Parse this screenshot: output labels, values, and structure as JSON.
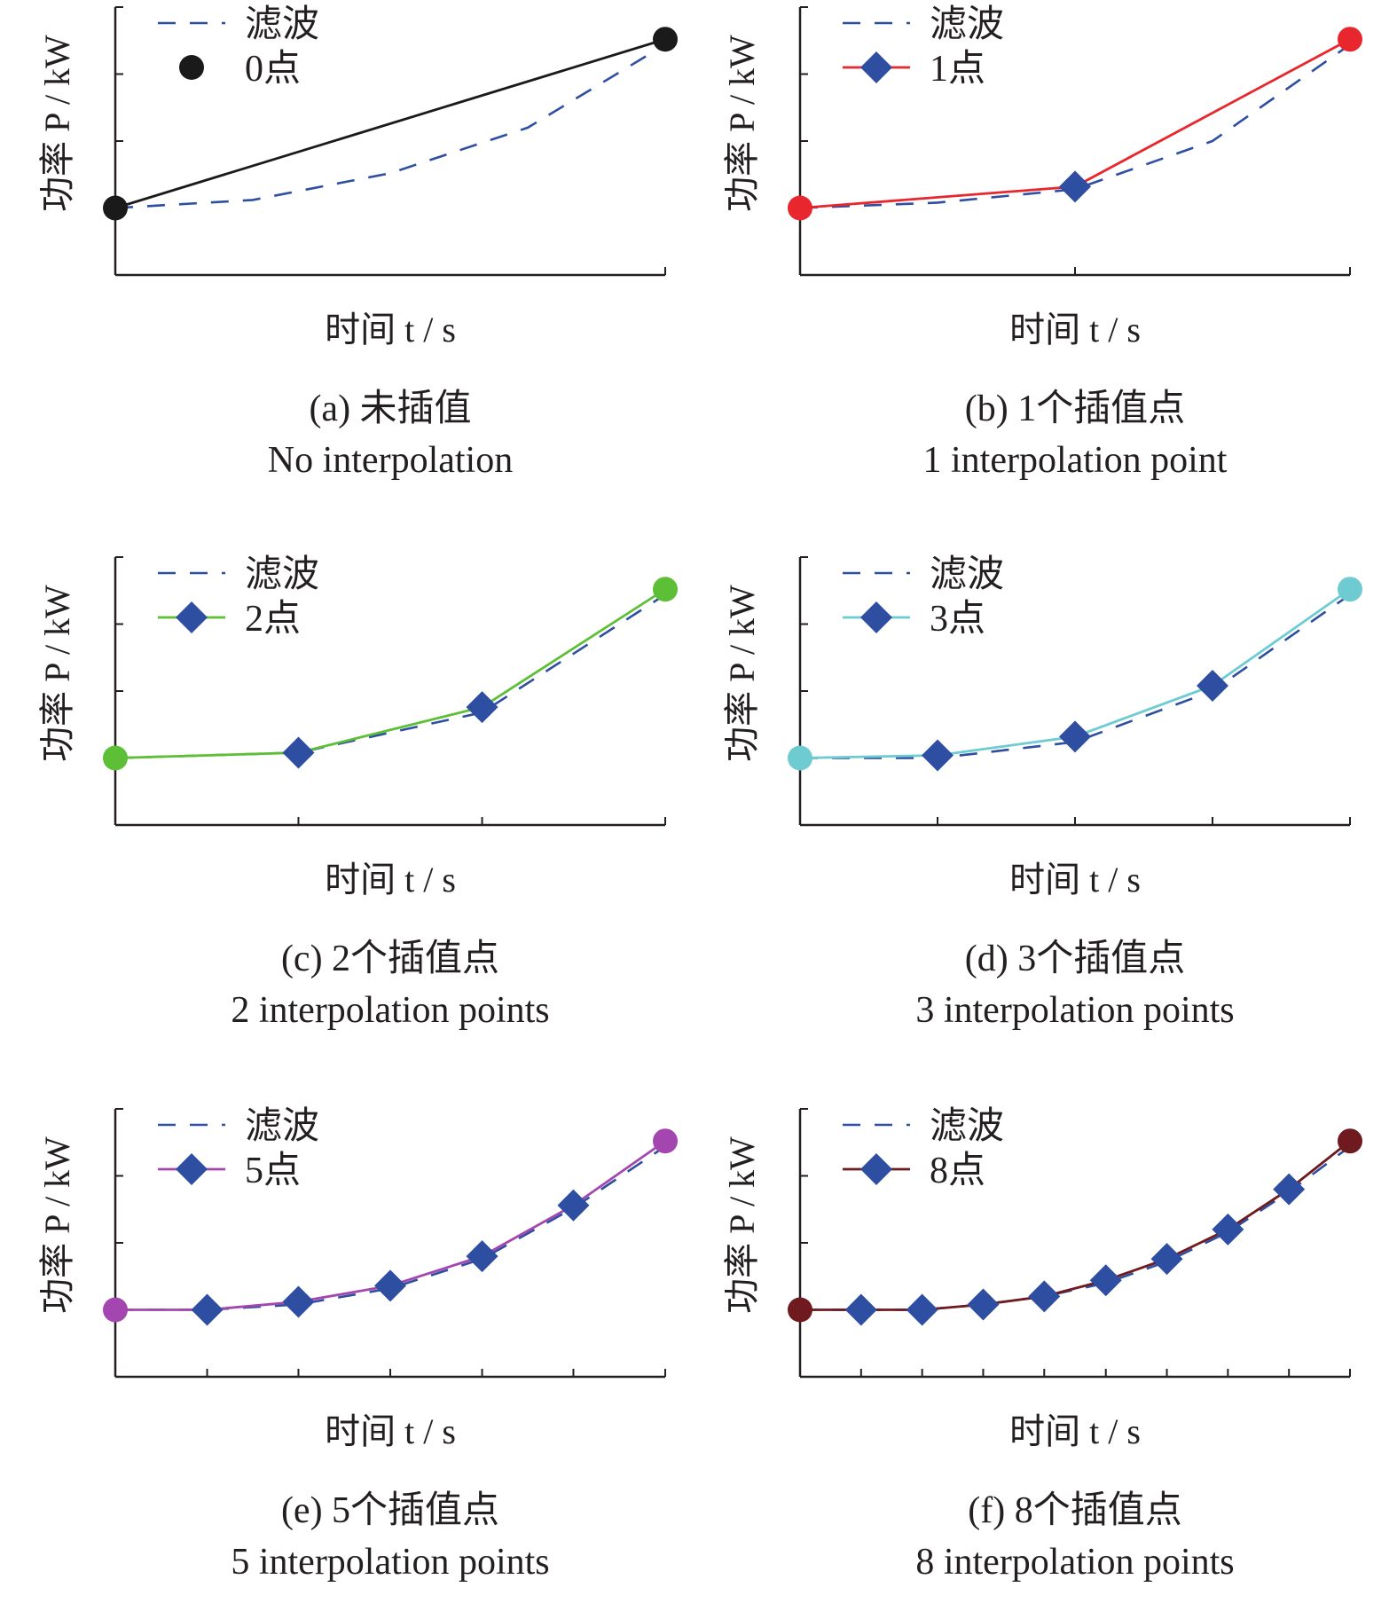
{
  "colors": {
    "filtered": "#2e4ea1",
    "diamond": "#2e4ea1",
    "axis": "#231f20"
  },
  "chart_data": [
    {
      "type": "line",
      "xlabel": "时间 t / s",
      "ylabel": "功率 P / kW",
      "caption_cn": "(a) 未插值",
      "caption_en": "No interpolation",
      "legend": [
        "滤波",
        "0点"
      ],
      "marker": "circle",
      "color": "#1a1a1a",
      "x": [
        0,
        1
      ],
      "filtered_curve": {
        "x": [
          0,
          0.25,
          0.5,
          0.75,
          1
        ],
        "y": [
          0.25,
          0.28,
          0.38,
          0.55,
          0.86
        ]
      },
      "series": [
        {
          "x": [
            0,
            1
          ],
          "y": [
            0.25,
            0.88
          ]
        }
      ],
      "ylim": [
        0,
        1
      ]
    },
    {
      "type": "line",
      "xlabel": "时间 t / s",
      "ylabel": "功率 P / kW",
      "caption_cn": "(b) 1个插值点",
      "caption_en": "1 interpolation point",
      "legend": [
        "滤波",
        "1点"
      ],
      "marker": "diamond",
      "color": "#e8262d",
      "x": [
        0,
        0.5,
        1
      ],
      "filtered_curve": {
        "x": [
          0,
          0.25,
          0.5,
          0.75,
          1
        ],
        "y": [
          0.25,
          0.27,
          0.32,
          0.5,
          0.86
        ]
      },
      "series": [
        {
          "x": [
            0,
            0.5,
            1
          ],
          "y": [
            0.25,
            0.33,
            0.88
          ]
        }
      ],
      "ylim": [
        0,
        1
      ]
    },
    {
      "type": "line",
      "xlabel": "时间 t / s",
      "ylabel": "功率 P / kW",
      "caption_cn": "(c) 2个插值点",
      "caption_en": "2 interpolation points",
      "legend": [
        "滤波",
        "2点"
      ],
      "marker": "diamond",
      "color": "#5cbf35",
      "x": [
        0,
        0.333,
        0.667,
        1
      ],
      "filtered_curve": {
        "x": [
          0,
          0.333,
          0.667,
          1
        ],
        "y": [
          0.25,
          0.27,
          0.42,
          0.86
        ]
      },
      "series": [
        {
          "x": [
            0,
            0.333,
            0.667,
            1
          ],
          "y": [
            0.25,
            0.27,
            0.44,
            0.88
          ]
        }
      ],
      "ylim": [
        0,
        1
      ]
    },
    {
      "type": "line",
      "xlabel": "时间 t / s",
      "ylabel": "功率 P / kW",
      "caption_cn": "(d) 3个插值点",
      "caption_en": "3 interpolation points",
      "legend": [
        "滤波",
        "3点"
      ],
      "marker": "diamond",
      "color": "#6dcbd1",
      "x": [
        0,
        0.25,
        0.5,
        0.75,
        1
      ],
      "filtered_curve": {
        "x": [
          0,
          0.25,
          0.5,
          0.75,
          1
        ],
        "y": [
          0.25,
          0.25,
          0.31,
          0.5,
          0.86
        ]
      },
      "series": [
        {
          "x": [
            0,
            0.25,
            0.5,
            0.75,
            1
          ],
          "y": [
            0.25,
            0.26,
            0.33,
            0.52,
            0.88
          ]
        }
      ],
      "ylim": [
        0,
        1
      ]
    },
    {
      "type": "line",
      "xlabel": "时间 t / s",
      "ylabel": "功率 P / kW",
      "caption_cn": "(e) 5个插值点",
      "caption_en": "5 interpolation points",
      "legend": [
        "滤波",
        "5点"
      ],
      "marker": "diamond",
      "color": "#a346b0",
      "x": [
        0,
        0.167,
        0.333,
        0.5,
        0.667,
        0.833,
        1
      ],
      "filtered_curve": {
        "x": [
          0,
          0.167,
          0.333,
          0.5,
          0.667,
          0.833,
          1
        ],
        "y": [
          0.25,
          0.25,
          0.27,
          0.33,
          0.44,
          0.63,
          0.86
        ]
      },
      "series": [
        {
          "x": [
            0,
            0.167,
            0.333,
            0.5,
            0.667,
            0.833,
            1
          ],
          "y": [
            0.25,
            0.25,
            0.28,
            0.34,
            0.45,
            0.64,
            0.88
          ]
        }
      ],
      "ylim": [
        0,
        1
      ]
    },
    {
      "type": "line",
      "xlabel": "时间 t / s",
      "ylabel": "功率 P / kW",
      "caption_cn": "(f) 8个插值点",
      "caption_en": "8 interpolation points",
      "legend": [
        "滤波",
        "8点"
      ],
      "marker": "diamond",
      "color": "#6e1a1f",
      "x": [
        0,
        0.111,
        0.222,
        0.333,
        0.444,
        0.556,
        0.667,
        0.778,
        0.889,
        1
      ],
      "filtered_curve": {
        "x": [
          0,
          0.111,
          0.222,
          0.333,
          0.444,
          0.556,
          0.667,
          0.778,
          0.889,
          1
        ],
        "y": [
          0.25,
          0.25,
          0.25,
          0.27,
          0.3,
          0.35,
          0.43,
          0.54,
          0.69,
          0.86
        ]
      },
      "series": [
        {
          "x": [
            0,
            0.111,
            0.222,
            0.333,
            0.444,
            0.556,
            0.667,
            0.778,
            0.889,
            1
          ],
          "y": [
            0.25,
            0.25,
            0.25,
            0.27,
            0.3,
            0.36,
            0.44,
            0.55,
            0.7,
            0.88
          ]
        }
      ],
      "ylim": [
        0,
        1
      ]
    }
  ]
}
